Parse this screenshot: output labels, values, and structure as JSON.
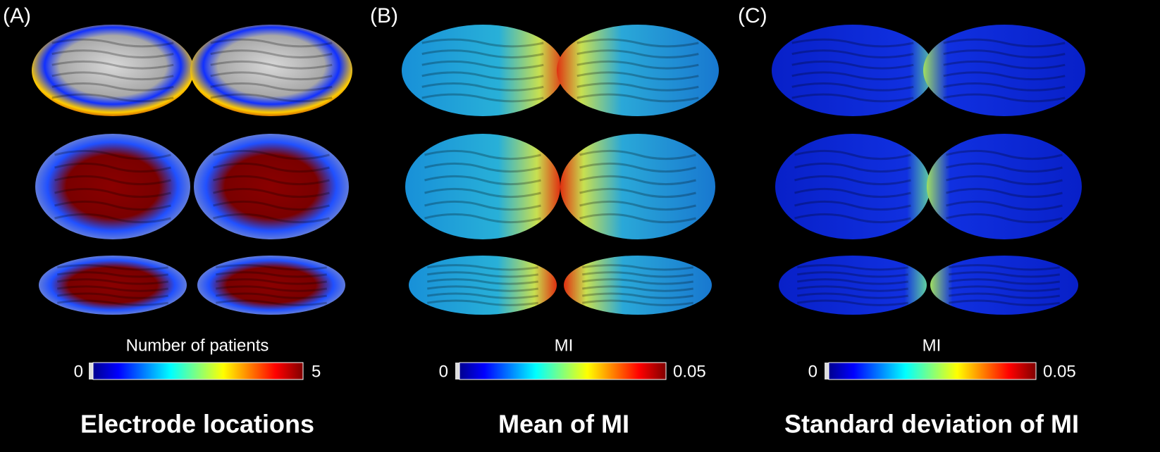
{
  "panels": [
    {
      "label": "(A)",
      "colorbar": {
        "title": "Number of patients",
        "min_label": "0",
        "max_label": "5"
      },
      "caption": "Electrode locations"
    },
    {
      "label": "(B)",
      "colorbar": {
        "title": "MI",
        "min_label": "0",
        "max_label": "0.05"
      },
      "caption": "Mean of MI"
    },
    {
      "label": "(C)",
      "colorbar": {
        "title": "MI",
        "min_label": "0",
        "max_label": "0.05"
      },
      "caption": "Standard deviation of MI"
    }
  ]
}
